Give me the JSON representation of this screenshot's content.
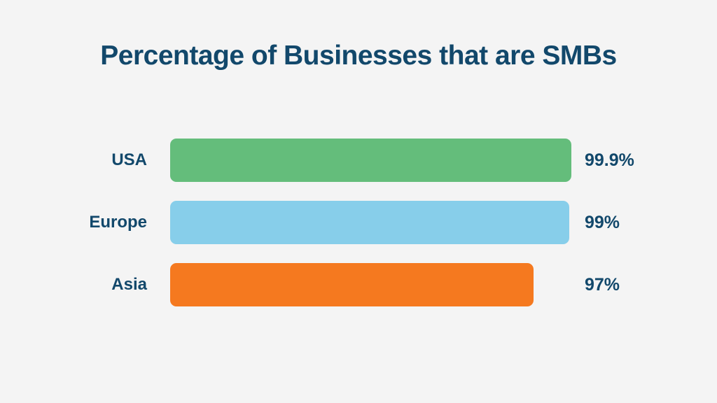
{
  "background_color": "#f4f4f4",
  "text_color": "#12486b",
  "title": {
    "text": "Percentage of Businesses that are SMBs"
  },
  "chart_data": {
    "type": "bar",
    "orientation": "horizontal",
    "title": "Percentage of Businesses that are SMBs",
    "categories": [
      "USA",
      "Europe",
      "Asia"
    ],
    "values": [
      99.9,
      99,
      97
    ],
    "value_labels": [
      "99.9%",
      "99%",
      "97%"
    ],
    "bar_colors": [
      "#64bd7b",
      "#87ceea",
      "#f5791f"
    ],
    "bar_width_pct": [
      100,
      99.5,
      90.6
    ],
    "xlabel": "",
    "ylabel": "",
    "xlim": [
      0,
      100
    ],
    "grid": false,
    "legend_position": "none",
    "axes_visible": false
  }
}
